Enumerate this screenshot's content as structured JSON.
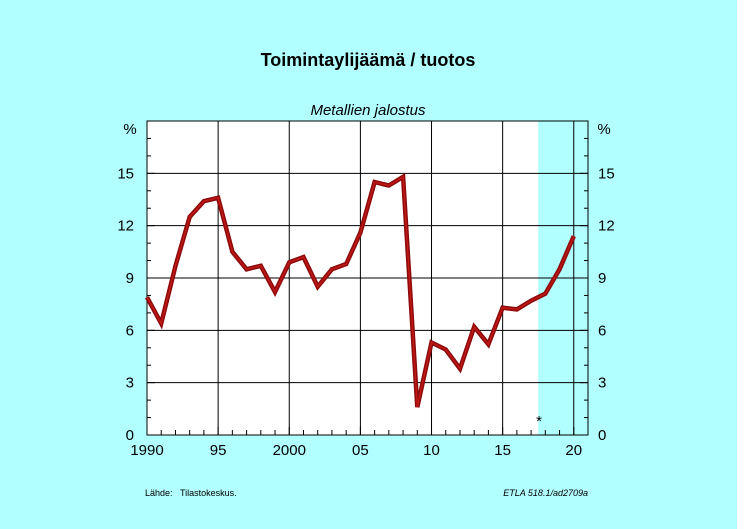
{
  "title": "Toimintaylijäämä / tuotos",
  "subtitle": "Metallien jalostus",
  "y_unit_left": "%",
  "y_unit_right": "%",
  "forecast_marker": "*",
  "footer": {
    "source_label": "Lähde:",
    "source_value": "Tilastokeskus.",
    "reference": "ETLA 518.1/ad2709a"
  },
  "colors": {
    "background": "#b2ffff",
    "plot_bg": "#ffffff",
    "forecast_shade": "#b2ffff",
    "line": "#8b0a0a",
    "line_highlight": "#c21818",
    "grid": "#000000"
  },
  "chart_data": {
    "type": "line",
    "title": "Toimintaylijäämä / tuotos",
    "subtitle": "Metallien jalostus",
    "xlabel": "",
    "ylabel": "%",
    "xlim": [
      1990,
      2021
    ],
    "ylim": [
      0,
      18
    ],
    "x_ticks": [
      {
        "value": 1990,
        "label": "1990"
      },
      {
        "value": 1995,
        "label": "95"
      },
      {
        "value": 2000,
        "label": "2000"
      },
      {
        "value": 2005,
        "label": "05"
      },
      {
        "value": 2010,
        "label": "10"
      },
      {
        "value": 2015,
        "label": "15"
      },
      {
        "value": 2020,
        "label": "20"
      }
    ],
    "y_ticks": [
      0,
      3,
      6,
      9,
      12,
      15
    ],
    "grid": true,
    "forecast_from": 2017.5,
    "series": [
      {
        "x": [
          1990,
          1991,
          1992,
          1993,
          1994,
          1995,
          1996,
          1997,
          1998,
          1999,
          2000,
          2001,
          2002,
          2003,
          2004,
          2005,
          2006,
          2007,
          2008,
          2009,
          2010,
          2011,
          2012,
          2013,
          2014,
          2015,
          2016,
          2017,
          2018,
          2019,
          2020
        ],
        "values": [
          7.9,
          6.4,
          9.7,
          12.5,
          13.4,
          13.6,
          10.5,
          9.5,
          9.7,
          8.2,
          9.9,
          10.2,
          8.5,
          9.5,
          9.8,
          11.6,
          14.5,
          14.3,
          14.8,
          1.6,
          5.3,
          4.9,
          3.8,
          6.2,
          5.2,
          7.3,
          7.2,
          7.7,
          8.1,
          9.5,
          11.4
        ]
      }
    ]
  }
}
